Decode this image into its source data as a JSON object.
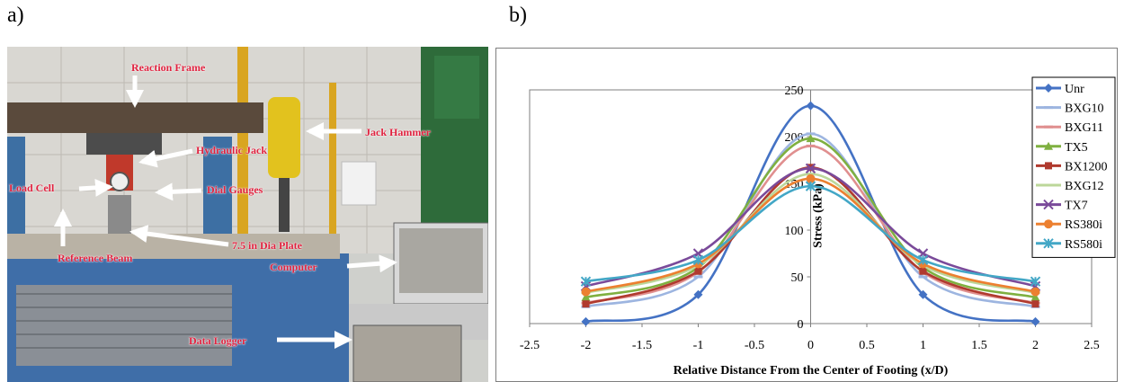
{
  "panels": {
    "a": "a)",
    "b": "b)"
  },
  "photo_callouts": {
    "reaction_frame": "Reaction Frame",
    "jack_hammer": "Jack Hammer",
    "hydraulic_jack": "Hydraulic Jack",
    "load_cell": "Load Cell",
    "dial_gauges": "Dial Gauges",
    "reference_beam": "Reference Beam",
    "plate": "7.5 in Dia Plate",
    "computer": "Computer",
    "data_logger": "Data Logger"
  },
  "chart_data": {
    "type": "line",
    "xlabel": "Relative Distance From the Center of Footing (x/D)",
    "ylabel": "Stress (kPa)",
    "xlim": [
      -2.5,
      2.5
    ],
    "ylim": [
      0,
      250
    ],
    "xticks": [
      -2.5,
      -2,
      -1.5,
      -1,
      -0.5,
      0,
      0.5,
      1,
      1.5,
      2,
      2.5
    ],
    "yticks": [
      0,
      50,
      100,
      150,
      200,
      250
    ],
    "grid": false,
    "legend_position": "top-right",
    "x": [
      -2,
      -1,
      0,
      1,
      2
    ],
    "series": [
      {
        "name": "Unr",
        "color": "#4472c4",
        "marker": "diamond",
        "values": [
          2,
          31,
          233,
          31,
          2
        ]
      },
      {
        "name": "BXG10",
        "color": "#9db5e0",
        "marker": "dash",
        "values": [
          18,
          50,
          203,
          50,
          18
        ]
      },
      {
        "name": "BXG11",
        "color": "#e08f8f",
        "marker": "dash",
        "values": [
          22,
          55,
          190,
          55,
          22
        ]
      },
      {
        "name": "TX5",
        "color": "#7fb040",
        "marker": "triangle",
        "values": [
          28,
          60,
          198,
          60,
          28
        ]
      },
      {
        "name": "BX1200",
        "color": "#b03a2e",
        "marker": "square",
        "values": [
          21,
          56,
          167,
          56,
          21
        ]
      },
      {
        "name": "BXG12",
        "color": "#bcd79a",
        "marker": "dash",
        "values": [
          33,
          62,
          160,
          62,
          33
        ]
      },
      {
        "name": "TX7",
        "color": "#7a4a9a",
        "marker": "x",
        "values": [
          40,
          75,
          166,
          75,
          40
        ]
      },
      {
        "name": "RS380i",
        "color": "#ec8030",
        "marker": "circle",
        "values": [
          34,
          64,
          155,
          64,
          34
        ]
      },
      {
        "name": "RS580i",
        "color": "#43a7c6",
        "marker": "star",
        "values": [
          45,
          68,
          147,
          68,
          45
        ]
      }
    ]
  }
}
